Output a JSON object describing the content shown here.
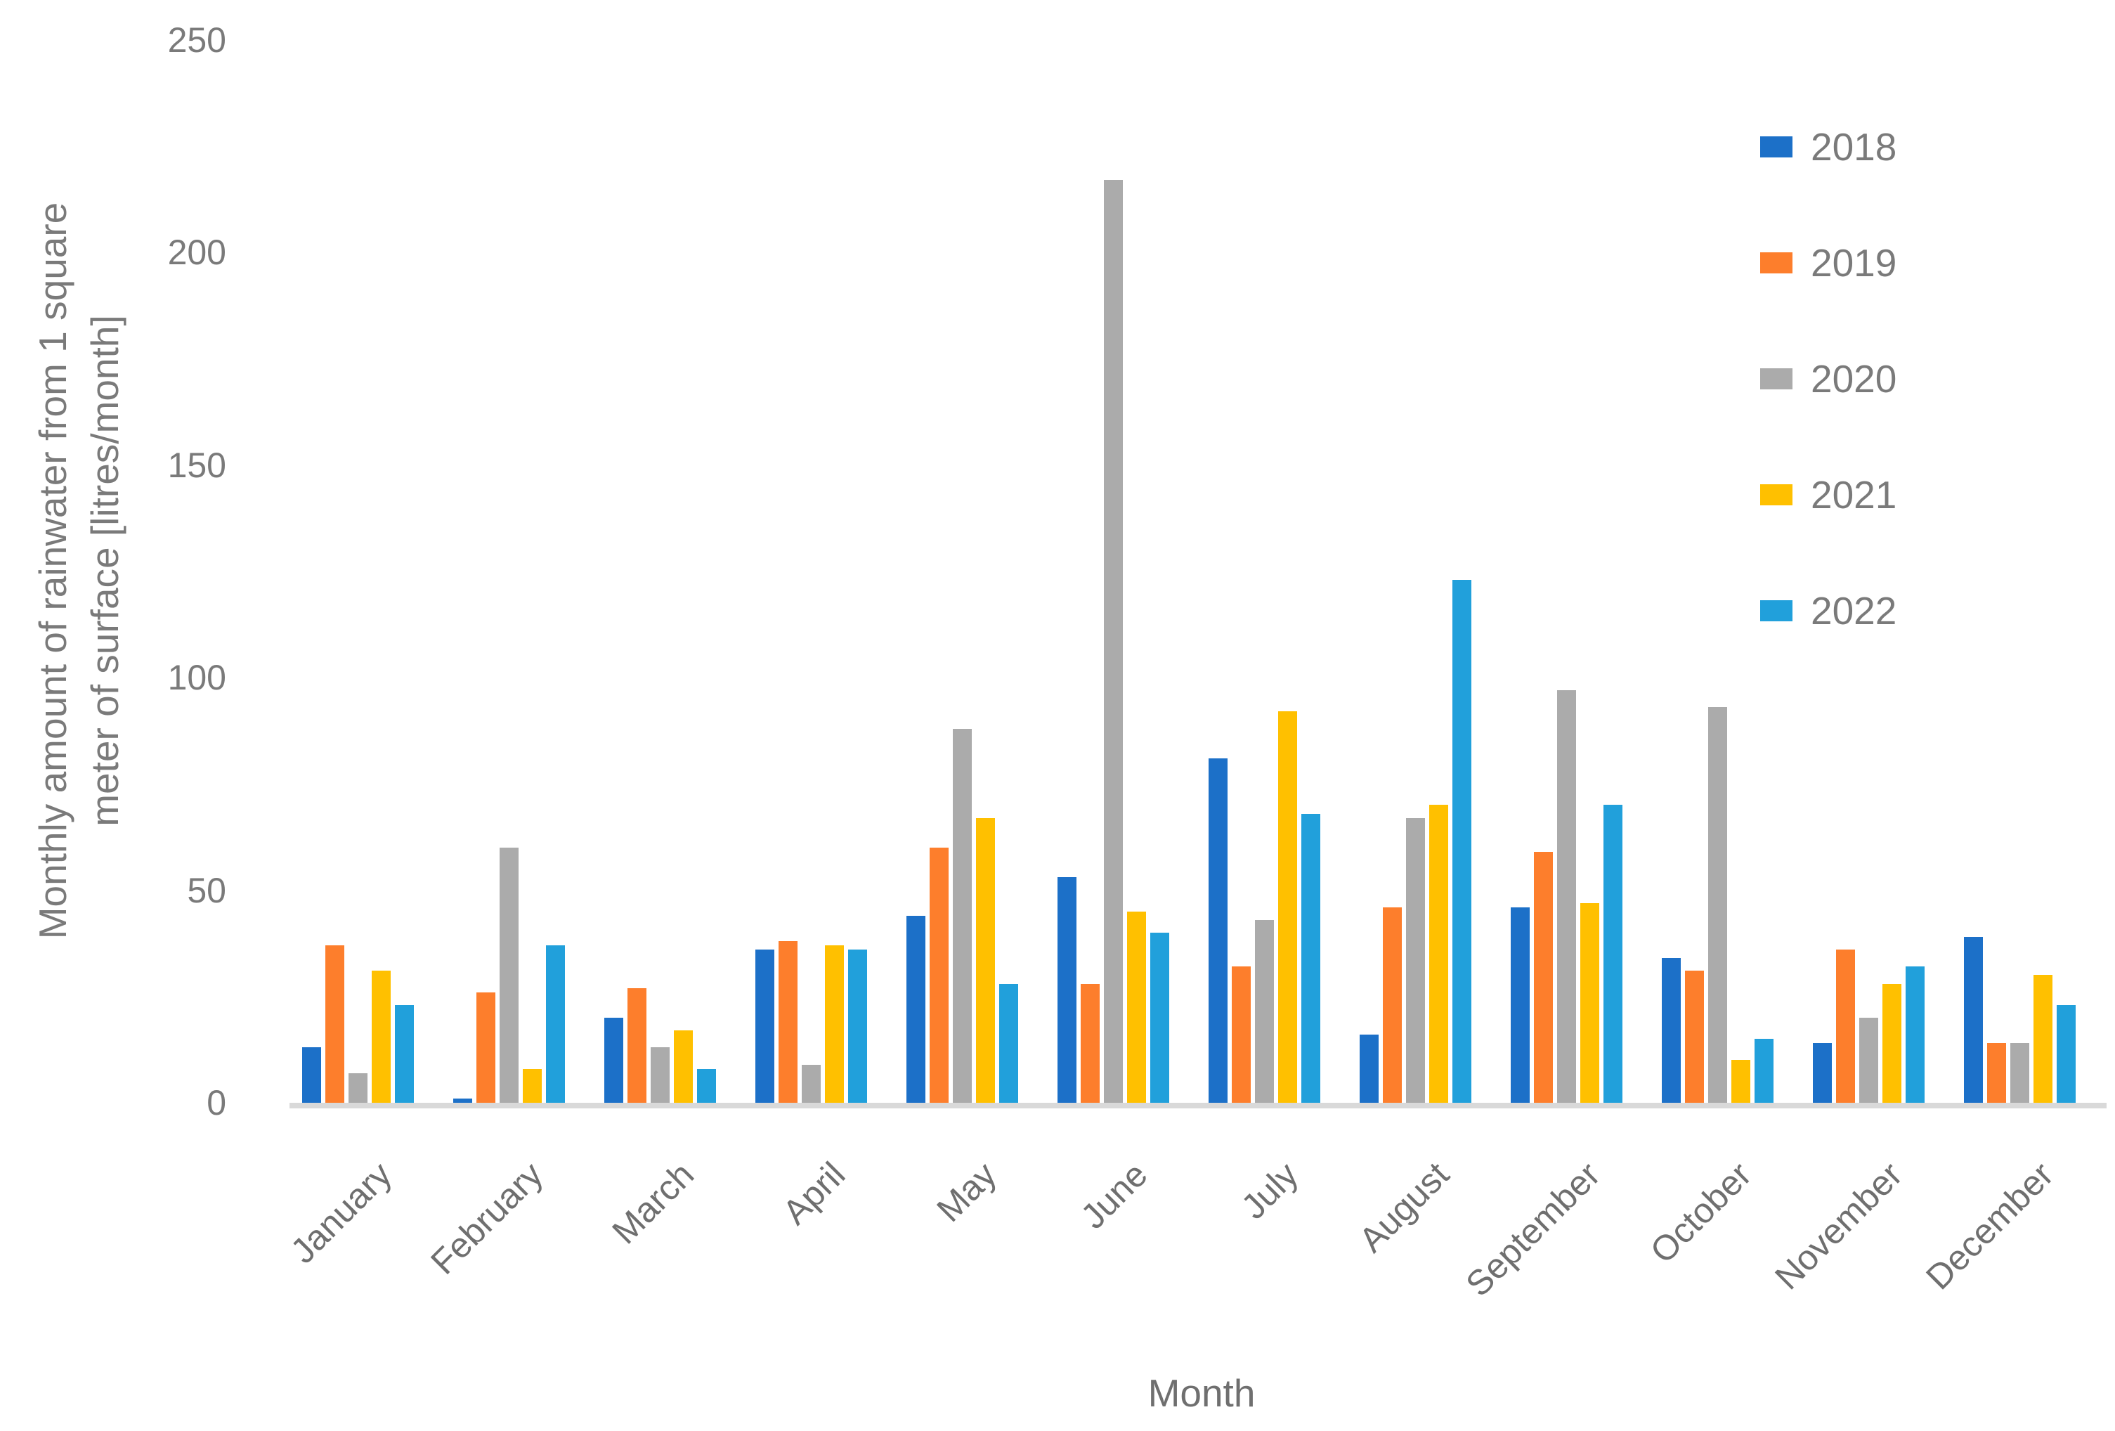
{
  "chart_data": {
    "type": "bar",
    "title": "",
    "xlabel": "Month",
    "ylabel": "Monthly amount of rainwater from 1 square meter of surface [litres/month]",
    "ylabel_lines": [
      "Monthly amount of rainwater from 1 square",
      "meter of surface [litres/month]"
    ],
    "categories": [
      "January",
      "February",
      "March",
      "April",
      "May",
      "June",
      "July",
      "August",
      "September",
      "October",
      "November",
      "December"
    ],
    "yticks": [
      0,
      50,
      100,
      150,
      200,
      250
    ],
    "ylim": [
      0,
      250
    ],
    "grid": false,
    "legend_position": "top-right",
    "text_color": "#7a7a7a",
    "axis_line_color": "#d9d9d9",
    "series": [
      {
        "name": "2018",
        "color": "#1C70C8",
        "values": [
          13,
          1,
          20,
          36,
          44,
          53,
          81,
          16,
          46,
          34,
          14,
          39
        ]
      },
      {
        "name": "2019",
        "color": "#FD7E2C",
        "values": [
          37,
          26,
          27,
          38,
          60,
          28,
          32,
          46,
          59,
          31,
          36,
          14
        ]
      },
      {
        "name": "2020",
        "color": "#ABABAB",
        "values": [
          7,
          60,
          13,
          9,
          88,
          217,
          43,
          67,
          97,
          93,
          20,
          14
        ]
      },
      {
        "name": "2021",
        "color": "#FFC000",
        "values": [
          31,
          8,
          17,
          37,
          67,
          45,
          92,
          70,
          47,
          10,
          28,
          30
        ]
      },
      {
        "name": "2022",
        "color": "#21A0DB",
        "values": [
          23,
          37,
          8,
          36,
          28,
          40,
          68,
          123,
          70,
          15,
          32,
          23
        ]
      }
    ]
  }
}
